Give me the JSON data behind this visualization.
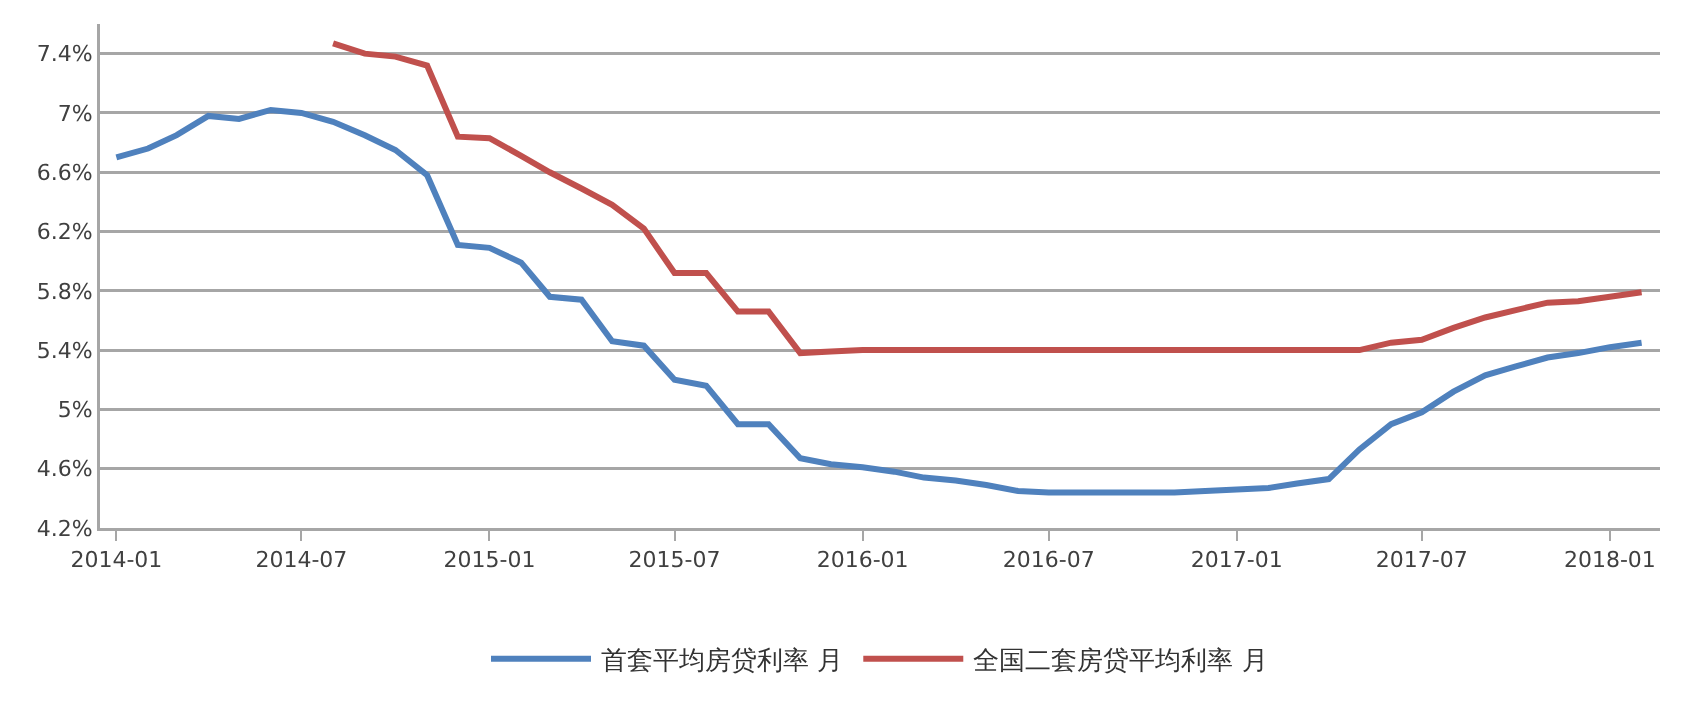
{
  "chart_data": {
    "type": "line",
    "x": [
      "2014-01",
      "2014-02",
      "2014-03",
      "2014-04",
      "2014-05",
      "2014-06",
      "2014-07",
      "2014-08",
      "2014-09",
      "2014-10",
      "2014-11",
      "2014-12",
      "2015-01",
      "2015-02",
      "2015-03",
      "2015-04",
      "2015-05",
      "2015-06",
      "2015-07",
      "2015-08",
      "2015-09",
      "2015-10",
      "2015-11",
      "2015-12",
      "2016-01",
      "2016-02",
      "2016-03",
      "2016-04",
      "2016-05",
      "2016-06",
      "2016-07",
      "2016-08",
      "2016-09",
      "2016-10",
      "2016-11",
      "2016-12",
      "2017-01",
      "2017-02",
      "2017-03",
      "2017-04",
      "2017-05",
      "2017-06",
      "2017-07",
      "2017-08",
      "2017-09",
      "2017-10",
      "2017-11",
      "2017-12",
      "2018-01",
      "2018-02"
    ],
    "series": [
      {
        "name": "首套平均房贷利率 月",
        "color": "#4f81bd",
        "values": [
          6.7,
          6.76,
          6.85,
          6.98,
          6.96,
          7.02,
          7.0,
          6.94,
          6.85,
          6.75,
          6.58,
          6.11,
          6.09,
          5.99,
          5.76,
          5.74,
          5.46,
          5.43,
          5.2,
          5.16,
          4.9,
          4.9,
          4.67,
          4.63,
          4.61,
          4.58,
          4.54,
          4.52,
          4.49,
          4.45,
          4.44,
          4.44,
          4.44,
          4.44,
          4.44,
          4.45,
          4.46,
          4.47,
          4.5,
          4.53,
          4.73,
          4.9,
          4.98,
          5.12,
          5.23,
          5.29,
          5.35,
          5.38,
          5.42,
          5.45
        ]
      },
      {
        "name": "全国二套房贷平均利率 月",
        "color": "#c0504d",
        "values": [
          null,
          null,
          null,
          null,
          null,
          null,
          null,
          7.47,
          7.4,
          7.38,
          7.32,
          6.84,
          6.83,
          6.71,
          6.6,
          6.49,
          6.38,
          6.22,
          5.92,
          5.92,
          5.66,
          5.66,
          5.38,
          5.39,
          5.4,
          5.4,
          5.4,
          5.4,
          5.4,
          5.4,
          5.4,
          5.4,
          5.4,
          5.4,
          5.4,
          5.4,
          5.4,
          5.4,
          5.4,
          5.4,
          5.4,
          5.45,
          5.47,
          5.55,
          5.62,
          5.67,
          5.72,
          5.73,
          5.76,
          5.79
        ]
      }
    ],
    "xlim": [
      "2013-12-16",
      "2018-02-19"
    ],
    "xticks": [
      {
        "value": "2014-01",
        "label": "2014-01"
      },
      {
        "value": "2014-07",
        "label": "2014-07"
      },
      {
        "value": "2015-01",
        "label": "2015-01"
      },
      {
        "value": "2015-07",
        "label": "2015-07"
      },
      {
        "value": "2016-01",
        "label": "2016-01"
      },
      {
        "value": "2016-07",
        "label": "2016-07"
      },
      {
        "value": "2017-01",
        "label": "2017-01"
      },
      {
        "value": "2017-07",
        "label": "2017-07"
      },
      {
        "value": "2018-01",
        "label": "2018-01"
      }
    ],
    "ylim": [
      4.2,
      7.6
    ],
    "yticks": [
      {
        "value": 4.2,
        "label": "4.2%"
      },
      {
        "value": 4.6,
        "label": "4.6%"
      },
      {
        "value": 5,
        "label": "5%"
      },
      {
        "value": 5.4,
        "label": "5.4%"
      },
      {
        "value": 5.8,
        "label": "5.8%"
      },
      {
        "value": 6.2,
        "label": "6.2%"
      },
      {
        "value": 6.6,
        "label": "6.6%"
      },
      {
        "value": 7,
        "label": "7%"
      },
      {
        "value": 7.4,
        "label": "7.4%"
      }
    ],
    "grid": "y",
    "legend": "bottom",
    "marker": "none",
    "line_style": "solid"
  }
}
